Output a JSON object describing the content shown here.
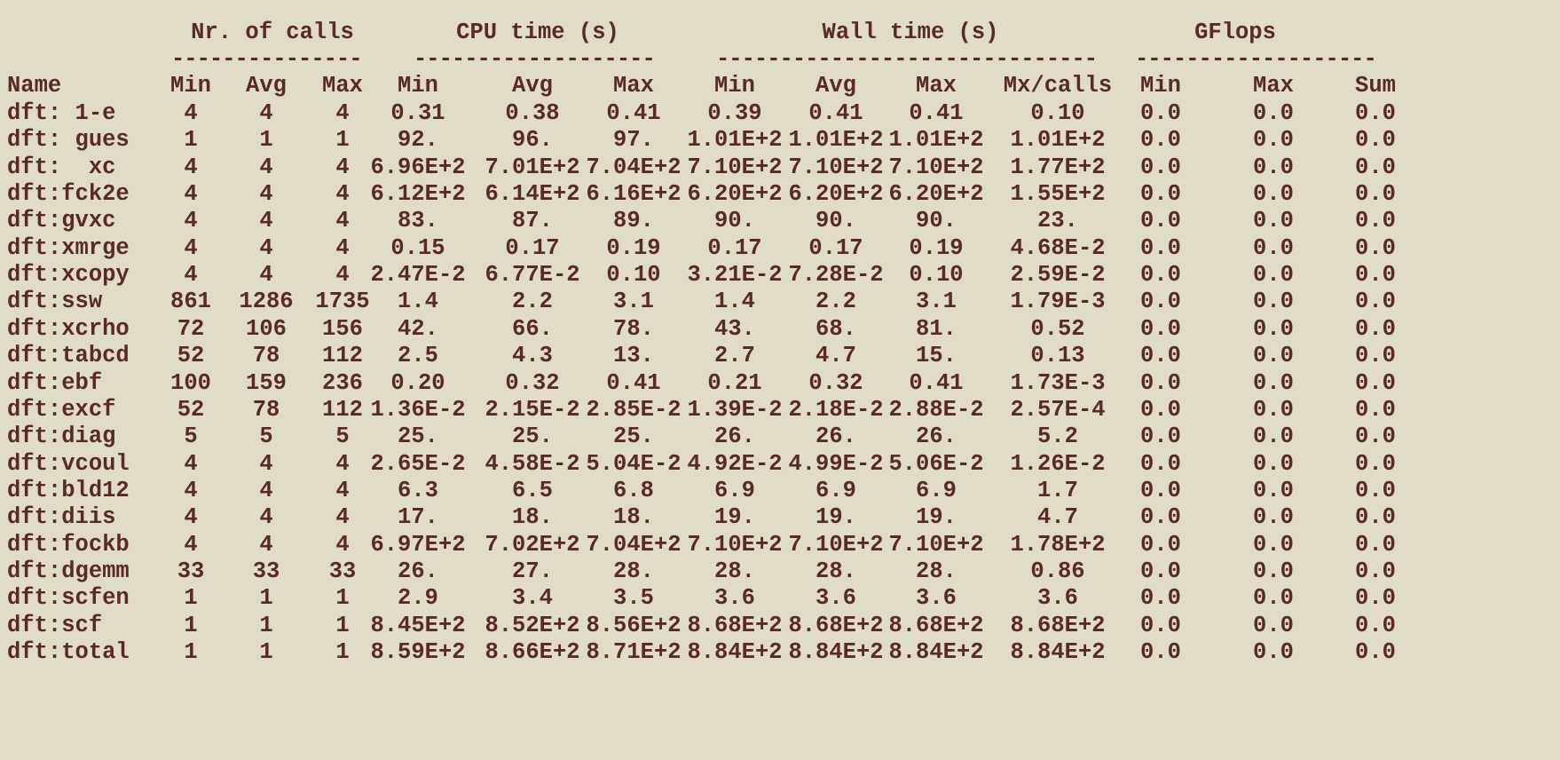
{
  "group_headers": {
    "calls": "Nr. of calls",
    "cpu": "CPU time (s)",
    "wall": "Wall time (s)",
    "gflops": "GFlops"
  },
  "column_headers": [
    "Name",
    "Min",
    "Avg",
    "Max",
    "Min",
    "Avg",
    "Max",
    "Min",
    "Avg",
    "Max",
    "Mx/calls",
    "Min",
    "Max",
    "Sum"
  ],
  "rows": [
    [
      "dft: 1-e",
      "4",
      "4",
      "4",
      "0.31",
      "0.38",
      "0.41",
      "0.39",
      "0.41",
      "0.41",
      "0.10",
      "0.0",
      "0.0",
      "0.0"
    ],
    [
      "dft: gues",
      "1",
      "1",
      "1",
      "92.",
      "96.",
      "97.",
      "1.01E+2",
      "1.01E+2",
      "1.01E+2",
      "1.01E+2",
      "0.0",
      "0.0",
      "0.0"
    ],
    [
      "dft:  xc",
      "4",
      "4",
      "4",
      "6.96E+2",
      "7.01E+2",
      "7.04E+2",
      "7.10E+2",
      "7.10E+2",
      "7.10E+2",
      "1.77E+2",
      "0.0",
      "0.0",
      "0.0"
    ],
    [
      "dft:fck2e",
      "4",
      "4",
      "4",
      "6.12E+2",
      "6.14E+2",
      "6.16E+2",
      "6.20E+2",
      "6.20E+2",
      "6.20E+2",
      "1.55E+2",
      "0.0",
      "0.0",
      "0.0"
    ],
    [
      "dft:gvxc",
      "4",
      "4",
      "4",
      "83.",
      "87.",
      "89.",
      "90.",
      "90.",
      "90.",
      "23.",
      "0.0",
      "0.0",
      "0.0"
    ],
    [
      "dft:xmrge",
      "4",
      "4",
      "4",
      "0.15",
      "0.17",
      "0.19",
      "0.17",
      "0.17",
      "0.19",
      "4.68E-2",
      "0.0",
      "0.0",
      "0.0"
    ],
    [
      "dft:xcopy",
      "4",
      "4",
      "4",
      "2.47E-2",
      "6.77E-2",
      "0.10",
      "3.21E-2",
      "7.28E-2",
      "0.10",
      "2.59E-2",
      "0.0",
      "0.0",
      "0.0"
    ],
    [
      "dft:ssw",
      "861",
      "1286",
      "1735",
      "1.4",
      "2.2",
      "3.1",
      "1.4",
      "2.2",
      "3.1",
      "1.79E-3",
      "0.0",
      "0.0",
      "0.0"
    ],
    [
      "dft:xcrho",
      "72",
      "106",
      "156",
      "42.",
      "66.",
      "78.",
      "43.",
      "68.",
      "81.",
      "0.52",
      "0.0",
      "0.0",
      "0.0"
    ],
    [
      "dft:tabcd",
      "52",
      "78",
      "112",
      "2.5",
      "4.3",
      "13.",
      "2.7",
      "4.7",
      "15.",
      "0.13",
      "0.0",
      "0.0",
      "0.0"
    ],
    [
      "dft:ebf",
      "100",
      "159",
      "236",
      "0.20",
      "0.32",
      "0.41",
      "0.21",
      "0.32",
      "0.41",
      "1.73E-3",
      "0.0",
      "0.0",
      "0.0"
    ],
    [
      "dft:excf",
      "52",
      "78",
      "112",
      "1.36E-2",
      "2.15E-2",
      "2.85E-2",
      "1.39E-2",
      "2.18E-2",
      "2.88E-2",
      "2.57E-4",
      "0.0",
      "0.0",
      "0.0"
    ],
    [
      "dft:diag",
      "5",
      "5",
      "5",
      "25.",
      "25.",
      "25.",
      "26.",
      "26.",
      "26.",
      "5.2",
      "0.0",
      "0.0",
      "0.0"
    ],
    [
      "dft:vcoul",
      "4",
      "4",
      "4",
      "2.65E-2",
      "4.58E-2",
      "5.04E-2",
      "4.92E-2",
      "4.99E-2",
      "5.06E-2",
      "1.26E-2",
      "0.0",
      "0.0",
      "0.0"
    ],
    [
      "dft:bld12",
      "4",
      "4",
      "4",
      "6.3",
      "6.5",
      "6.8",
      "6.9",
      "6.9",
      "6.9",
      "1.7",
      "0.0",
      "0.0",
      "0.0"
    ],
    [
      "dft:diis",
      "4",
      "4",
      "4",
      "17.",
      "18.",
      "18.",
      "19.",
      "19.",
      "19.",
      "4.7",
      "0.0",
      "0.0",
      "0.0"
    ],
    [
      "dft:fockb",
      "4",
      "4",
      "4",
      "6.97E+2",
      "7.02E+2",
      "7.04E+2",
      "7.10E+2",
      "7.10E+2",
      "7.10E+2",
      "1.78E+2",
      "0.0",
      "0.0",
      "0.0"
    ],
    [
      "dft:dgemm",
      "33",
      "33",
      "33",
      "26.",
      "27.",
      "28.",
      "28.",
      "28.",
      "28.",
      "0.86",
      "0.0",
      "0.0",
      "0.0"
    ],
    [
      "dft:scfen",
      "1",
      "1",
      "1",
      "2.9",
      "3.4",
      "3.5",
      "3.6",
      "3.6",
      "3.6",
      "3.6",
      "0.0",
      "0.0",
      "0.0"
    ],
    [
      "dft:scf",
      "1",
      "1",
      "1",
      "8.45E+2",
      "8.52E+2",
      "8.56E+2",
      "8.68E+2",
      "8.68E+2",
      "8.68E+2",
      "8.68E+2",
      "0.0",
      "0.0",
      "0.0"
    ],
    [
      "dft:total",
      "1",
      "1",
      "1",
      "8.59E+2",
      "8.66E+2",
      "8.71E+2",
      "8.84E+2",
      "8.84E+2",
      "8.84E+2",
      "8.84E+2",
      "0.0",
      "0.0",
      "0.0"
    ]
  ]
}
